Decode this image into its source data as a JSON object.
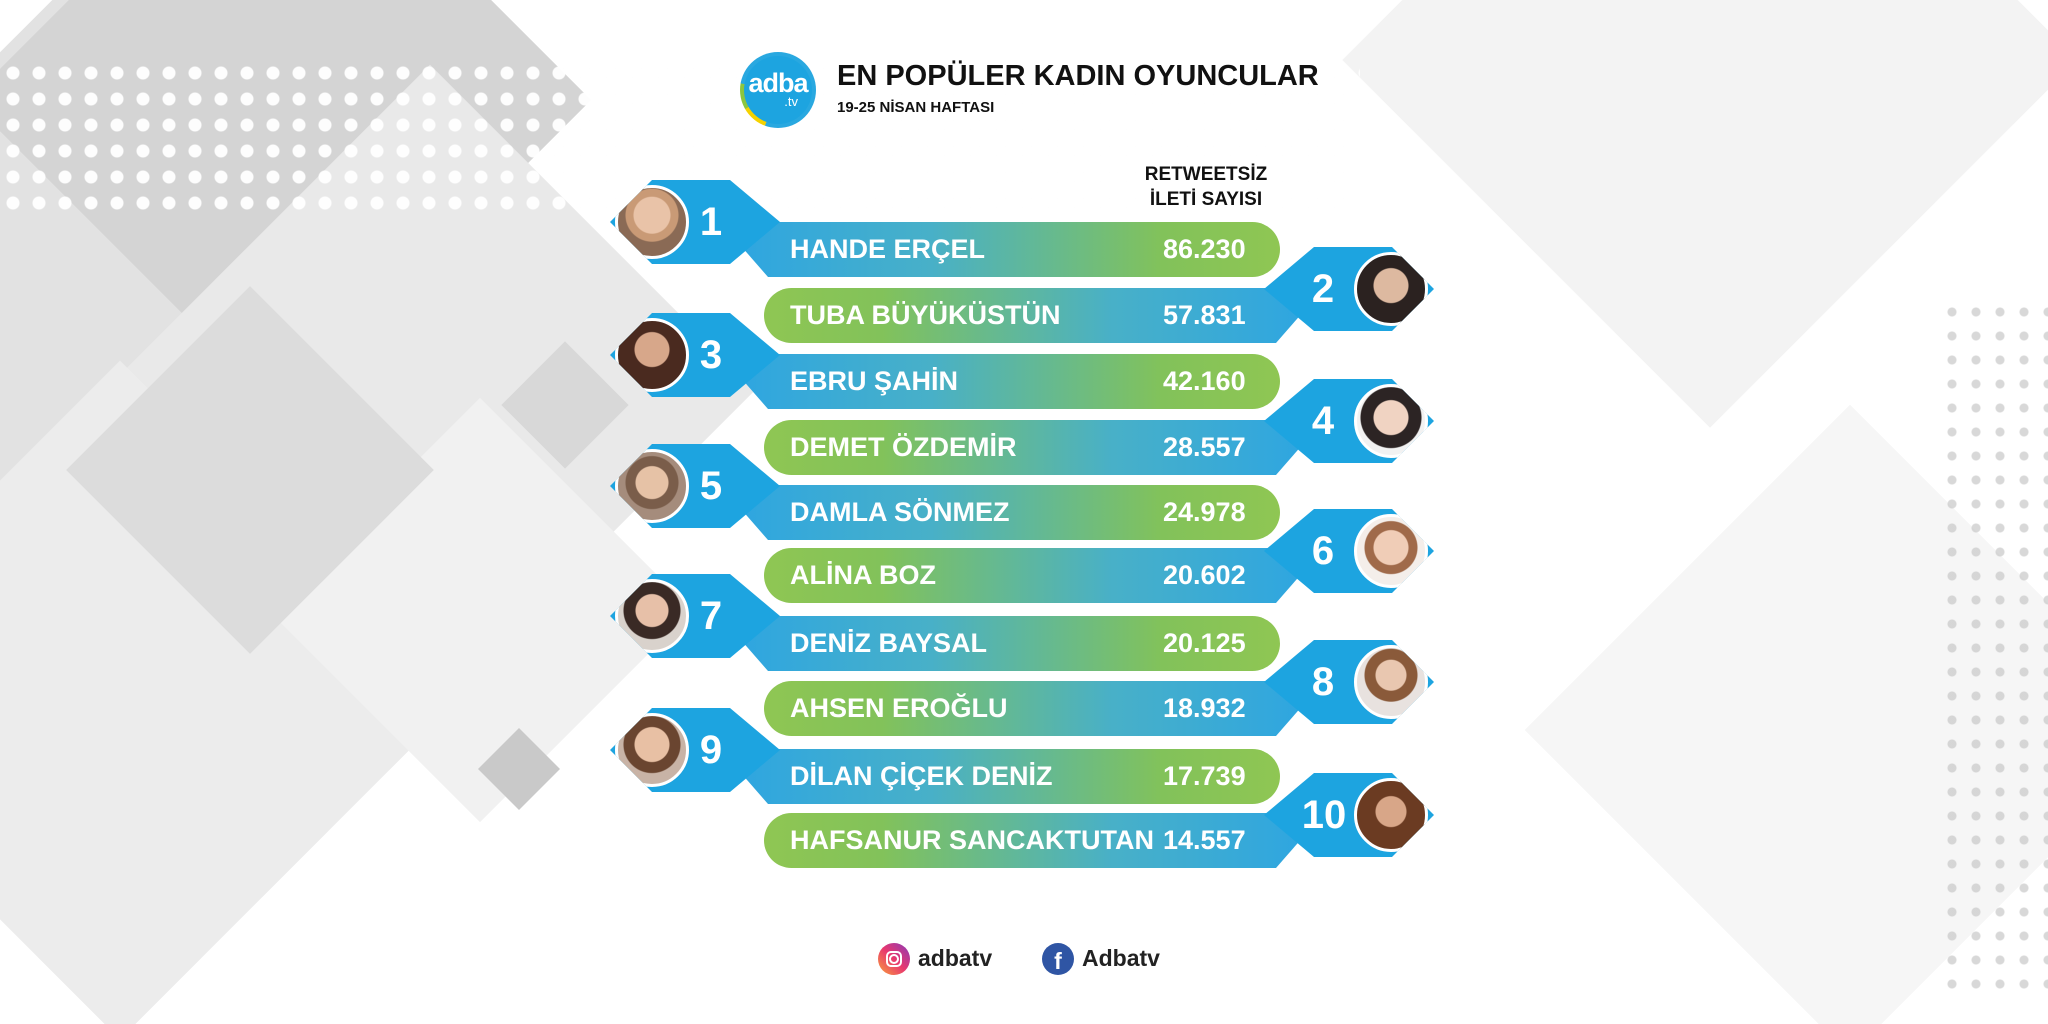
{
  "header": {
    "logo_text": "adba",
    "logo_sub": ".tv",
    "title": "EN POPÜLER KADIN OYUNCULAR",
    "subtitle": "19-25 NİSAN HAFTASI"
  },
  "column_header": {
    "line1": "RETWEETSİZ",
    "line2": "İLETİ SAYISI"
  },
  "ranking": [
    {
      "rank": "1",
      "name": "HANDE ERÇEL",
      "value": "86.230"
    },
    {
      "rank": "2",
      "name": "TUBA BÜYÜKÜSTÜN",
      "value": "57.831"
    },
    {
      "rank": "3",
      "name": "EBRU ŞAHİN",
      "value": "42.160"
    },
    {
      "rank": "4",
      "name": "DEMET ÖZDEMİR",
      "value": "28.557"
    },
    {
      "rank": "5",
      "name": "DAMLA SÖNMEZ",
      "value": "24.978"
    },
    {
      "rank": "6",
      "name": "ALİNA BOZ",
      "value": "20.602"
    },
    {
      "rank": "7",
      "name": "DENİZ BAYSAL",
      "value": "20.125"
    },
    {
      "rank": "8",
      "name": "AHSEN EROĞLU",
      "value": "18.932"
    },
    {
      "rank": "9",
      "name": "DİLAN ÇİÇEK DENİZ",
      "value": "17.739"
    },
    {
      "rank": "10",
      "name": "HAFSANUR SANCAKTUTAN",
      "value": "14.557"
    }
  ],
  "footer": {
    "instagram": "adbatv",
    "facebook": "Adbatv",
    "facebook_glyph": "f"
  },
  "colors": {
    "accent_blue": "#1da4e0",
    "accent_green": "#8fc653"
  }
}
